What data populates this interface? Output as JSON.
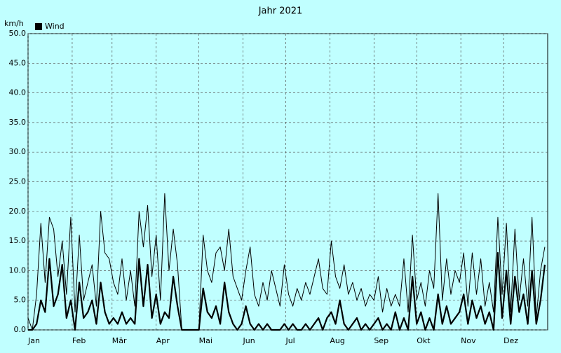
{
  "chart_data": {
    "type": "line",
    "title": "Jahr 2021",
    "y_label": "km/h",
    "x": [
      0,
      3,
      6,
      9,
      12,
      15,
      18,
      21,
      24,
      27,
      30,
      33,
      36,
      39,
      42,
      45,
      48,
      51,
      54,
      57,
      60,
      63,
      66,
      69,
      72,
      75,
      78,
      81,
      84,
      87,
      90,
      93,
      96,
      99,
      102,
      105,
      108,
      111,
      114,
      117,
      120,
      123,
      126,
      129,
      132,
      135,
      138,
      141,
      144,
      147,
      150,
      153,
      156,
      159,
      162,
      165,
      168,
      171,
      174,
      177,
      180,
      183,
      186,
      189,
      192,
      195,
      198,
      201,
      204,
      207,
      210,
      213,
      216,
      219,
      222,
      225,
      228,
      231,
      234,
      237,
      240,
      243,
      246,
      249,
      252,
      255,
      258,
      261,
      264,
      267,
      270,
      273,
      276,
      279,
      282,
      285,
      288,
      291,
      294,
      297,
      300,
      303,
      306,
      309,
      312,
      315,
      318,
      321,
      324,
      327,
      330,
      333,
      336,
      339,
      342,
      345,
      348,
      351,
      354,
      357,
      360,
      363
    ],
    "series": [
      {
        "color": "#000000",
        "width": 1,
        "values": [
          2,
          0,
          6,
          18,
          8,
          19,
          17,
          9,
          15,
          6,
          19,
          3,
          16,
          5,
          8,
          11,
          4,
          20,
          13,
          12,
          8,
          6,
          12,
          5,
          10,
          4,
          20,
          14,
          21,
          9,
          16,
          5,
          23,
          10,
          17,
          11,
          0,
          0,
          0,
          0,
          0,
          16,
          10,
          8,
          13,
          14,
          10,
          17,
          9,
          7,
          5,
          10,
          14,
          6,
          4,
          8,
          5,
          10,
          7,
          4,
          11,
          6,
          4,
          7,
          5,
          8,
          6,
          9,
          12,
          7,
          6,
          15,
          9,
          7,
          11,
          6,
          8,
          5,
          7,
          4,
          6,
          5,
          9,
          3,
          7,
          4,
          6,
          4,
          12,
          3,
          16,
          5,
          8,
          4,
          10,
          7,
          23,
          5,
          12,
          6,
          10,
          8,
          13,
          4,
          13,
          6,
          12,
          4,
          8,
          3,
          19,
          6,
          18,
          3,
          17,
          5,
          12,
          4,
          19,
          2,
          10,
          14
        ]
      },
      {
        "name": "Wind",
        "color": "#000000",
        "width": 2.2,
        "values": [
          0,
          0,
          1,
          5,
          3,
          12,
          4,
          6,
          11,
          2,
          5,
          0,
          8,
          2,
          3,
          5,
          1,
          8,
          3,
          1,
          2,
          1,
          3,
          1,
          2,
          1,
          12,
          4,
          11,
          2,
          6,
          1,
          3,
          2,
          9,
          4,
          0,
          0,
          0,
          0,
          0,
          7,
          3,
          2,
          4,
          1,
          8,
          3,
          1,
          0,
          1,
          4,
          1,
          0,
          1,
          0,
          1,
          0,
          0,
          0,
          1,
          0,
          1,
          0,
          0,
          1,
          0,
          1,
          2,
          0,
          2,
          3,
          1,
          5,
          1,
          0,
          1,
          2,
          0,
          1,
          0,
          1,
          2,
          0,
          1,
          0,
          3,
          0,
          2,
          0,
          9,
          1,
          3,
          0,
          2,
          0,
          6,
          1,
          4,
          1,
          2,
          3,
          6,
          1,
          5,
          2,
          4,
          1,
          3,
          0,
          13,
          2,
          10,
          1,
          9,
          3,
          6,
          1,
          10,
          1,
          5,
          11
        ]
      }
    ],
    "xlim": [
      0,
      365
    ],
    "xticks": [
      {
        "value": 0,
        "label": "Jan"
      },
      {
        "value": 31,
        "label": "Feb"
      },
      {
        "value": 59,
        "label": "Mär"
      },
      {
        "value": 90,
        "label": "Apr"
      },
      {
        "value": 120,
        "label": "Mai"
      },
      {
        "value": 151,
        "label": "Jun"
      },
      {
        "value": 181,
        "label": "Jul"
      },
      {
        "value": 212,
        "label": "Aug"
      },
      {
        "value": 243,
        "label": "Sep"
      },
      {
        "value": 273,
        "label": "Okt"
      },
      {
        "value": 304,
        "label": "Nov"
      },
      {
        "value": 334,
        "label": "Dez"
      }
    ],
    "ylim": [
      0,
      50
    ],
    "yticks": [
      {
        "value": 0,
        "label": "0.0"
      },
      {
        "value": 5,
        "label": "5.0"
      },
      {
        "value": 10,
        "label": "10.0"
      },
      {
        "value": 15,
        "label": "15.0"
      },
      {
        "value": 20,
        "label": "20.0"
      },
      {
        "value": 25,
        "label": "25.0"
      },
      {
        "value": 30,
        "label": "30.0"
      },
      {
        "value": 35,
        "label": "35.0"
      },
      {
        "value": 40,
        "label": "40.0"
      },
      {
        "value": 45,
        "label": "45.0"
      },
      {
        "value": 50,
        "label": "50.0"
      }
    ],
    "grid": true,
    "legend": "top-left"
  }
}
